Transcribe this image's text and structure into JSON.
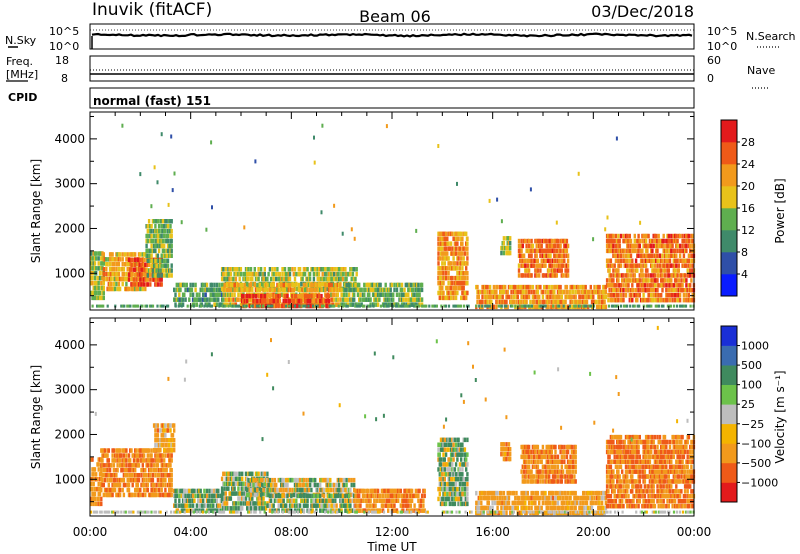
{
  "header": {
    "station": "Inuvik (fitACF)",
    "beam": "Beam 06",
    "date": "03/Dec/2018"
  },
  "summary_panels": {
    "nsky_label": "N.Sky",
    "nsearch_label": "N.Search",
    "freq_label_1": "Freq.",
    "freq_label_2": "[MHz]",
    "nave_label": "Nave",
    "cpid_label": "CPID",
    "cpid_text": "normal (fast) 151",
    "n_left_ticks": [
      "10^5",
      "10^0"
    ],
    "n_right_ticks": [
      "10^5",
      "10^0"
    ],
    "freq_ticks": [
      "18",
      "8"
    ],
    "nave_ticks": [
      "60",
      "0"
    ],
    "freq_value_mhz": 10.5,
    "nave_value": 25
  },
  "x_axis": {
    "label": "Time UT",
    "ticks": [
      "00:00",
      "04:00",
      "08:00",
      "12:00",
      "16:00",
      "20:00",
      "00:00"
    ]
  },
  "power_panel": {
    "ylabel": "Slant Range [km]",
    "yticks": [
      "4000",
      "3000",
      "2000",
      "1000"
    ],
    "colorbar_label": "Power [dB]",
    "colorbar_ticks": [
      "28",
      "24",
      "20",
      "16",
      "12",
      "8",
      "4"
    ],
    "colors": [
      "#0a1cff",
      "#2f4fa8",
      "#3f8a6a",
      "#5fae4f",
      "#e8c21a",
      "#f29a1c",
      "#ef5a18",
      "#e31a1c"
    ]
  },
  "velocity_panel": {
    "ylabel": "Slant Range [km]",
    "yticks": [
      "4000",
      "3000",
      "2000",
      "1000"
    ],
    "colorbar_label": "Velocity [m s⁻¹]",
    "colorbar_ticks": [
      "1000",
      "500",
      "100",
      "25",
      "−25",
      "−100",
      "−500",
      "−1000"
    ],
    "colors": [
      "#1a2fd6",
      "#3a6cb0",
      "#3f8a5e",
      "#6cc24a",
      "#bdbdbd",
      "#f4b400",
      "#f29a1c",
      "#ef5a18",
      "#e31a1c"
    ]
  },
  "chart_data": [
    {
      "type": "heatmap",
      "title": "Power",
      "xlabel": "Time UT",
      "ylabel": "Slant Range [km]",
      "xlim": [
        0,
        24
      ],
      "ylim": [
        180,
        4600
      ],
      "colorbar": {
        "label": "Power [dB]",
        "range": [
          0,
          32
        ]
      },
      "regions": [
        {
          "t": [
            0.0,
            0.5
          ],
          "r": [
            400,
            1500
          ],
          "value": 16
        },
        {
          "t": [
            0.5,
            2.2
          ],
          "r": [
            600,
            1450
          ],
          "value": 20
        },
        {
          "t": [
            1.5,
            2.8
          ],
          "r": [
            700,
            1350
          ],
          "value": 26
        },
        {
          "t": [
            2.2,
            3.2
          ],
          "r": [
            900,
            2200
          ],
          "value": 14
        },
        {
          "t": [
            3.3,
            5.3
          ],
          "r": [
            250,
            800
          ],
          "value": 12
        },
        {
          "t": [
            5.2,
            10.6
          ],
          "r": [
            600,
            1100
          ],
          "value": 16
        },
        {
          "t": [
            5.3,
            10.0
          ],
          "r": [
            250,
            700
          ],
          "value": 20
        },
        {
          "t": [
            6.0,
            9.5
          ],
          "r": [
            220,
            500
          ],
          "value": 27
        },
        {
          "t": [
            10.0,
            13.2
          ],
          "r": [
            250,
            800
          ],
          "value": 14
        },
        {
          "t": [
            13.8,
            15.0
          ],
          "r": [
            400,
            1900
          ],
          "value": 22
        },
        {
          "t": [
            16.3,
            16.7
          ],
          "r": [
            1400,
            1800
          ],
          "value": 16
        },
        {
          "t": [
            17.0,
            19.0
          ],
          "r": [
            900,
            1700
          ],
          "value": 24
        },
        {
          "t": [
            15.3,
            20.5
          ],
          "r": [
            200,
            700
          ],
          "value": 22
        },
        {
          "t": [
            20.5,
            24.0
          ],
          "r": [
            350,
            1800
          ],
          "value": 24
        }
      ]
    },
    {
      "type": "heatmap",
      "title": "Velocity",
      "xlabel": "Time UT",
      "ylabel": "Slant Range [km]",
      "xlim": [
        0,
        24
      ],
      "ylim": [
        180,
        4600
      ],
      "colorbar": {
        "label": "Velocity [m s⁻¹]",
        "range": [
          -1000,
          1000
        ]
      },
      "regions": [
        {
          "t": [
            0.0,
            0.4
          ],
          "r": [
            400,
            1500
          ],
          "value": -250
        },
        {
          "t": [
            0.4,
            3.2
          ],
          "r": [
            600,
            1600
          ],
          "value": -250
        },
        {
          "t": [
            2.5,
            3.3
          ],
          "r": [
            1600,
            2200
          ],
          "value": -150
        },
        {
          "t": [
            3.3,
            5.2
          ],
          "r": [
            250,
            700
          ],
          "value": 60
        },
        {
          "t": [
            5.2,
            7.0
          ],
          "r": [
            300,
            1100
          ],
          "value": 60
        },
        {
          "t": [
            6.2,
            10.5
          ],
          "r": [
            600,
            1000
          ],
          "value": 0
        },
        {
          "t": [
            7.0,
            10.5
          ],
          "r": [
            250,
            600
          ],
          "value": 60
        },
        {
          "t": [
            10.5,
            13.3
          ],
          "r": [
            250,
            800
          ],
          "value": -250
        },
        {
          "t": [
            13.8,
            15.0
          ],
          "r": [
            400,
            1900
          ],
          "value": 60
        },
        {
          "t": [
            16.3,
            16.7
          ],
          "r": [
            1400,
            1800
          ],
          "value": -200
        },
        {
          "t": [
            17.1,
            19.3
          ],
          "r": [
            900,
            1700
          ],
          "value": -250
        },
        {
          "t": [
            15.3,
            20.5
          ],
          "r": [
            200,
            700
          ],
          "value": -150
        },
        {
          "t": [
            20.5,
            24.0
          ],
          "r": [
            350,
            2000
          ],
          "value": -300
        }
      ]
    }
  ]
}
